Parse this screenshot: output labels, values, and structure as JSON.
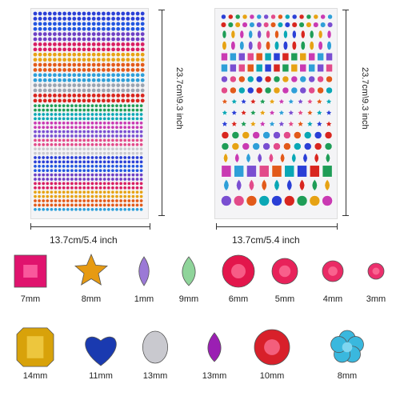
{
  "sheets": {
    "left": {
      "height_label": "23.7cm\\9.3 inch",
      "width_label": "13.7cm/5.4 inch"
    },
    "right": {
      "height_label": "23.7cm\\9.3 inch",
      "width_label": "13.7cm/5.4 inch"
    }
  },
  "gems": [
    {
      "label": "7mm",
      "shape": "square",
      "color": "#e0136e"
    },
    {
      "label": "8mm",
      "shape": "star",
      "color": "#e69a12"
    },
    {
      "label": "1mm",
      "shape": "marquise",
      "color": "#9b79d6"
    },
    {
      "label": "9mm",
      "shape": "teardrop",
      "color": "#8fd49a"
    },
    {
      "label": "6mm",
      "shape": "round",
      "color": "#e3164c"
    },
    {
      "label": "5mm",
      "shape": "round",
      "color": "#e8225a"
    },
    {
      "label": "4mm",
      "shape": "round",
      "color": "#ea2a65"
    },
    {
      "label": "3mm",
      "shape": "round",
      "color": "#ec2f6d"
    },
    {
      "label": "14mm",
      "shape": "octagon",
      "color": "#d8a20a"
    },
    {
      "label": "11mm",
      "shape": "heart",
      "color": "#1a3ab0"
    },
    {
      "label": "13mm",
      "shape": "oval",
      "color": "#c9c9cf"
    },
    {
      "label": "13mm",
      "shape": "teardrop",
      "color": "#9b1fb3"
    },
    {
      "label": "10mm",
      "shape": "round",
      "color": "#d8202a"
    },
    {
      "label": "8mm",
      "shape": "flower",
      "color": "#3ab8de"
    }
  ]
}
